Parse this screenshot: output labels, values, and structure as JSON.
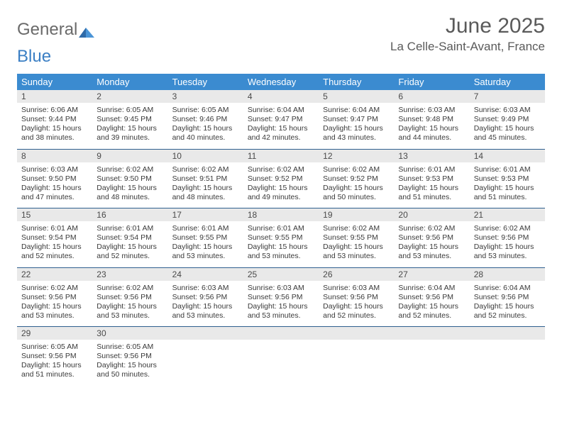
{
  "logo": {
    "word1": "General",
    "word2": "Blue"
  },
  "title": "June 2025",
  "location": "La Celle-Saint-Avant, France",
  "colors": {
    "header_bg": "#3b8bd0",
    "header_text": "#ffffff",
    "daynum_bg": "#e9e9e9",
    "week_divider": "#2f5f8f",
    "body_text": "#3a3a3a",
    "title_text": "#5a5a5a",
    "logo_gray": "#6a6a6a",
    "logo_blue": "#3b7fc4"
  },
  "dow": [
    "Sunday",
    "Monday",
    "Tuesday",
    "Wednesday",
    "Thursday",
    "Friday",
    "Saturday"
  ],
  "weeks": [
    [
      {
        "n": "1",
        "sr": "Sunrise: 6:06 AM",
        "ss": "Sunset: 9:44 PM",
        "d1": "Daylight: 15 hours",
        "d2": "and 38 minutes."
      },
      {
        "n": "2",
        "sr": "Sunrise: 6:05 AM",
        "ss": "Sunset: 9:45 PM",
        "d1": "Daylight: 15 hours",
        "d2": "and 39 minutes."
      },
      {
        "n": "3",
        "sr": "Sunrise: 6:05 AM",
        "ss": "Sunset: 9:46 PM",
        "d1": "Daylight: 15 hours",
        "d2": "and 40 minutes."
      },
      {
        "n": "4",
        "sr": "Sunrise: 6:04 AM",
        "ss": "Sunset: 9:47 PM",
        "d1": "Daylight: 15 hours",
        "d2": "and 42 minutes."
      },
      {
        "n": "5",
        "sr": "Sunrise: 6:04 AM",
        "ss": "Sunset: 9:47 PM",
        "d1": "Daylight: 15 hours",
        "d2": "and 43 minutes."
      },
      {
        "n": "6",
        "sr": "Sunrise: 6:03 AM",
        "ss": "Sunset: 9:48 PM",
        "d1": "Daylight: 15 hours",
        "d2": "and 44 minutes."
      },
      {
        "n": "7",
        "sr": "Sunrise: 6:03 AM",
        "ss": "Sunset: 9:49 PM",
        "d1": "Daylight: 15 hours",
        "d2": "and 45 minutes."
      }
    ],
    [
      {
        "n": "8",
        "sr": "Sunrise: 6:03 AM",
        "ss": "Sunset: 9:50 PM",
        "d1": "Daylight: 15 hours",
        "d2": "and 47 minutes."
      },
      {
        "n": "9",
        "sr": "Sunrise: 6:02 AM",
        "ss": "Sunset: 9:50 PM",
        "d1": "Daylight: 15 hours",
        "d2": "and 48 minutes."
      },
      {
        "n": "10",
        "sr": "Sunrise: 6:02 AM",
        "ss": "Sunset: 9:51 PM",
        "d1": "Daylight: 15 hours",
        "d2": "and 48 minutes."
      },
      {
        "n": "11",
        "sr": "Sunrise: 6:02 AM",
        "ss": "Sunset: 9:52 PM",
        "d1": "Daylight: 15 hours",
        "d2": "and 49 minutes."
      },
      {
        "n": "12",
        "sr": "Sunrise: 6:02 AM",
        "ss": "Sunset: 9:52 PM",
        "d1": "Daylight: 15 hours",
        "d2": "and 50 minutes."
      },
      {
        "n": "13",
        "sr": "Sunrise: 6:01 AM",
        "ss": "Sunset: 9:53 PM",
        "d1": "Daylight: 15 hours",
        "d2": "and 51 minutes."
      },
      {
        "n": "14",
        "sr": "Sunrise: 6:01 AM",
        "ss": "Sunset: 9:53 PM",
        "d1": "Daylight: 15 hours",
        "d2": "and 51 minutes."
      }
    ],
    [
      {
        "n": "15",
        "sr": "Sunrise: 6:01 AM",
        "ss": "Sunset: 9:54 PM",
        "d1": "Daylight: 15 hours",
        "d2": "and 52 minutes."
      },
      {
        "n": "16",
        "sr": "Sunrise: 6:01 AM",
        "ss": "Sunset: 9:54 PM",
        "d1": "Daylight: 15 hours",
        "d2": "and 52 minutes."
      },
      {
        "n": "17",
        "sr": "Sunrise: 6:01 AM",
        "ss": "Sunset: 9:55 PM",
        "d1": "Daylight: 15 hours",
        "d2": "and 53 minutes."
      },
      {
        "n": "18",
        "sr": "Sunrise: 6:01 AM",
        "ss": "Sunset: 9:55 PM",
        "d1": "Daylight: 15 hours",
        "d2": "and 53 minutes."
      },
      {
        "n": "19",
        "sr": "Sunrise: 6:02 AM",
        "ss": "Sunset: 9:55 PM",
        "d1": "Daylight: 15 hours",
        "d2": "and 53 minutes."
      },
      {
        "n": "20",
        "sr": "Sunrise: 6:02 AM",
        "ss": "Sunset: 9:56 PM",
        "d1": "Daylight: 15 hours",
        "d2": "and 53 minutes."
      },
      {
        "n": "21",
        "sr": "Sunrise: 6:02 AM",
        "ss": "Sunset: 9:56 PM",
        "d1": "Daylight: 15 hours",
        "d2": "and 53 minutes."
      }
    ],
    [
      {
        "n": "22",
        "sr": "Sunrise: 6:02 AM",
        "ss": "Sunset: 9:56 PM",
        "d1": "Daylight: 15 hours",
        "d2": "and 53 minutes."
      },
      {
        "n": "23",
        "sr": "Sunrise: 6:02 AM",
        "ss": "Sunset: 9:56 PM",
        "d1": "Daylight: 15 hours",
        "d2": "and 53 minutes."
      },
      {
        "n": "24",
        "sr": "Sunrise: 6:03 AM",
        "ss": "Sunset: 9:56 PM",
        "d1": "Daylight: 15 hours",
        "d2": "and 53 minutes."
      },
      {
        "n": "25",
        "sr": "Sunrise: 6:03 AM",
        "ss": "Sunset: 9:56 PM",
        "d1": "Daylight: 15 hours",
        "d2": "and 53 minutes."
      },
      {
        "n": "26",
        "sr": "Sunrise: 6:03 AM",
        "ss": "Sunset: 9:56 PM",
        "d1": "Daylight: 15 hours",
        "d2": "and 52 minutes."
      },
      {
        "n": "27",
        "sr": "Sunrise: 6:04 AM",
        "ss": "Sunset: 9:56 PM",
        "d1": "Daylight: 15 hours",
        "d2": "and 52 minutes."
      },
      {
        "n": "28",
        "sr": "Sunrise: 6:04 AM",
        "ss": "Sunset: 9:56 PM",
        "d1": "Daylight: 15 hours",
        "d2": "and 52 minutes."
      }
    ],
    [
      {
        "n": "29",
        "sr": "Sunrise: 6:05 AM",
        "ss": "Sunset: 9:56 PM",
        "d1": "Daylight: 15 hours",
        "d2": "and 51 minutes."
      },
      {
        "n": "30",
        "sr": "Sunrise: 6:05 AM",
        "ss": "Sunset: 9:56 PM",
        "d1": "Daylight: 15 hours",
        "d2": "and 50 minutes."
      },
      {
        "n": "",
        "sr": "",
        "ss": "",
        "d1": "",
        "d2": ""
      },
      {
        "n": "",
        "sr": "",
        "ss": "",
        "d1": "",
        "d2": ""
      },
      {
        "n": "",
        "sr": "",
        "ss": "",
        "d1": "",
        "d2": ""
      },
      {
        "n": "",
        "sr": "",
        "ss": "",
        "d1": "",
        "d2": ""
      },
      {
        "n": "",
        "sr": "",
        "ss": "",
        "d1": "",
        "d2": ""
      }
    ]
  ]
}
